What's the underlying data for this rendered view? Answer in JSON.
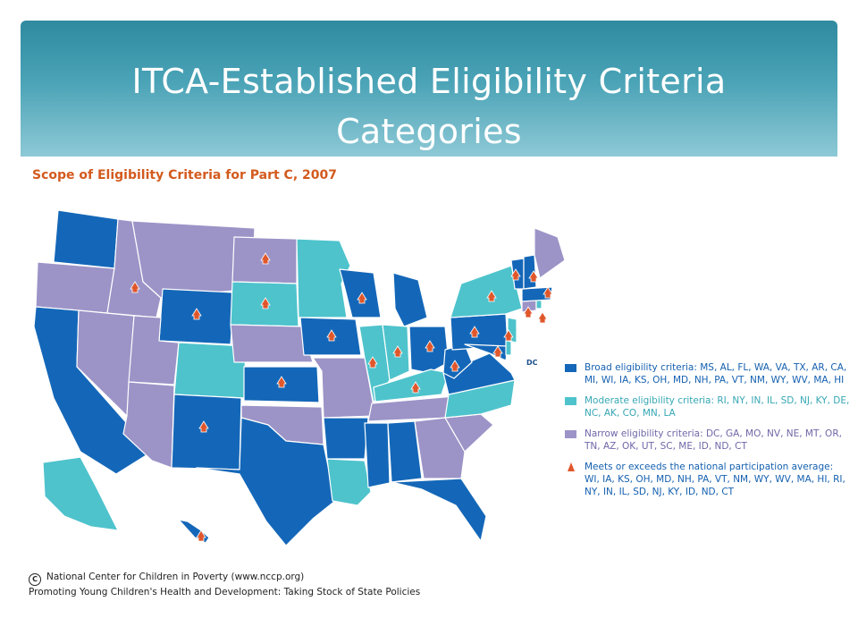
{
  "slide": {
    "title_line1": "ITCA-Established Eligibility Criteria",
    "title_line2": "Categories"
  },
  "figure": {
    "title": "Scope of Eligibility Criteria for Part C, 2007",
    "dc_label": "DC"
  },
  "colors": {
    "broad": "#1467b8",
    "moderate": "#4ec3cc",
    "narrow": "#9c94c7",
    "meets": "#e0572b",
    "header_accent": "#4aa3b6"
  },
  "legend": {
    "broad_label": "Broad eligibility criteria: MS, AL, FL, WA, VA, TX, AR, CA, MI, WI, IA, KS, OH, MD, NH, PA, VT, NM, WY, WV, MA, HI",
    "moderate_label": "Moderate eligibility criteria: RI, NY, IN, IL, SD, NJ, KY, DE, NC, AK, CO, MN, LA",
    "narrow_label": "Narrow eligibility criteria: DC, GA, MO, NV, NE, MT, OR, TN, AZ, OK, UT, SC, ME, ID, ND, CT",
    "meets_label": "Meets or exceeds the national participation average: WI, IA, KS, OH, MD, NH, PA, VT, NM, WY, WV, MA, HI, RI, NY, IN, IL, SD, NJ, KY, ID, ND, CT"
  },
  "footer": {
    "line1": "National Center for Children in Poverty (www.nccp.org)",
    "line2": "Promoting Young Children's Health and Development: Taking Stock of State Policies"
  }
}
